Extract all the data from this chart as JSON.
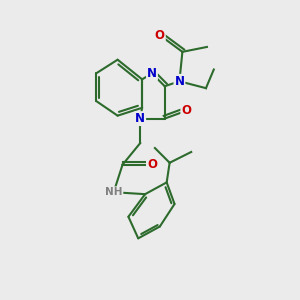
{
  "bg_color": "#ebebeb",
  "bond_color": "#2d6b2d",
  "bond_width": 1.5,
  "atom_colors": {
    "N": "#0000cc",
    "O": "#cc0000",
    "H": "#808080"
  },
  "font_size": 8.5,
  "fig_width": 3.0,
  "fig_height": 3.0,
  "dpi": 100
}
